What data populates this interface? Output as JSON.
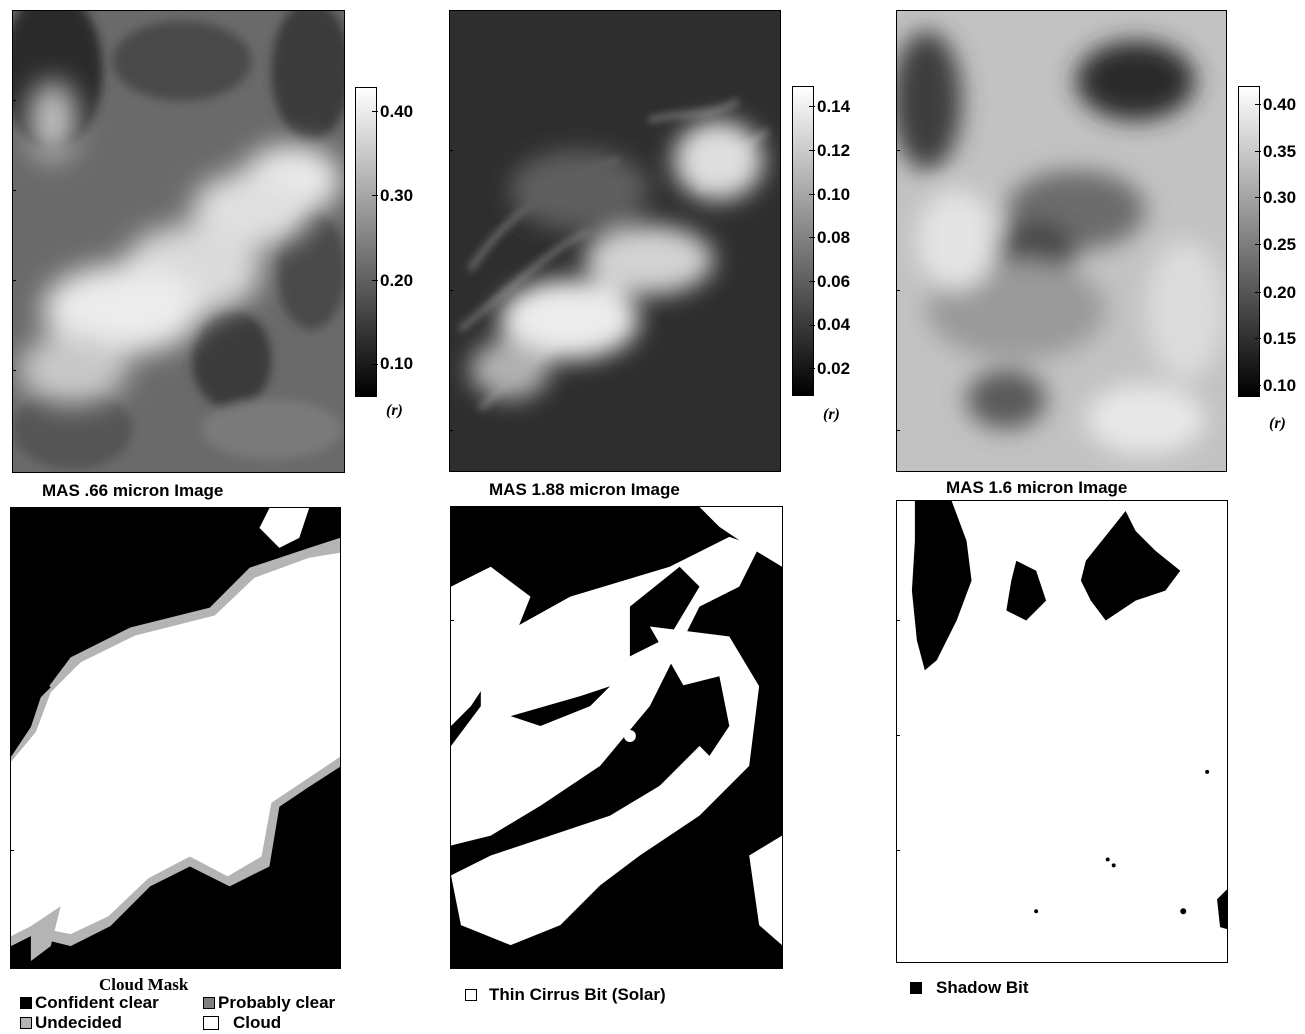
{
  "panels": {
    "vis": {
      "caption": "MAS .66 micron Image",
      "colorbar": {
        "labels": [
          "0.40",
          "0.30",
          "0.20",
          "0.10"
        ],
        "unit": "(r)"
      }
    },
    "nir188": {
      "caption": "MAS 1.88 micron Image",
      "colorbar": {
        "labels": [
          "0.14",
          "0.12",
          "0.10",
          "0.08",
          "0.06",
          "0.04",
          "0.02"
        ],
        "unit": "(r)"
      }
    },
    "swir16": {
      "caption": "MAS 1.6 micron Image",
      "colorbar": {
        "labels": [
          "0.40",
          "0.35",
          "0.30",
          "0.25",
          "0.20",
          "0.15",
          "0.10"
        ],
        "unit": "(r)"
      }
    }
  },
  "cloud_mask": {
    "title": "Cloud Mask",
    "legend": [
      {
        "label": "Confident clear",
        "color": "#000000"
      },
      {
        "label": "Probably clear",
        "color": "#808080"
      },
      {
        "label": "Undecided",
        "color": "#b4b4b4"
      },
      {
        "label": "Cloud",
        "color": "#ffffff"
      }
    ]
  },
  "cirrus": {
    "legend_label": "Thin Cirrus Bit (Solar)",
    "color": "#ffffff"
  },
  "shadow": {
    "legend_label": "Shadow Bit",
    "color": "#000000"
  }
}
